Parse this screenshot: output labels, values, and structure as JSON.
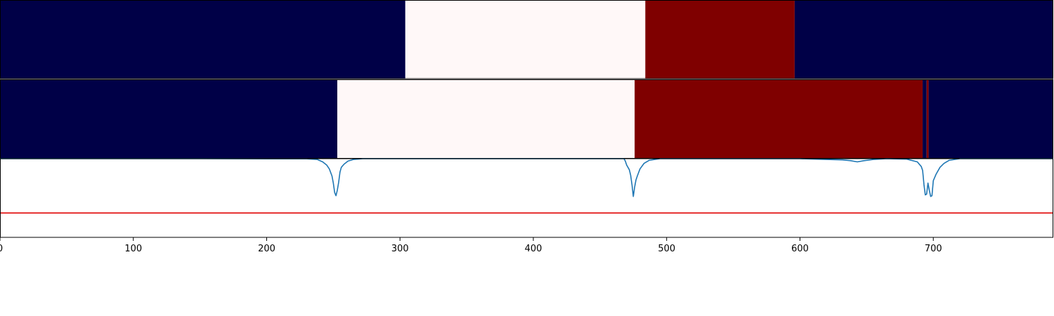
{
  "chart_data": [
    {
      "type": "heatmap",
      "panel": "ground-truth-segments",
      "xlim": [
        0,
        790
      ],
      "segments": [
        {
          "start": 0,
          "end": 304,
          "color": "#000047"
        },
        {
          "start": 304,
          "end": 484,
          "color": "#fff8f8"
        },
        {
          "start": 484,
          "end": 596,
          "color": "#7f0000"
        },
        {
          "start": 596,
          "end": 790,
          "color": "#000047"
        }
      ]
    },
    {
      "type": "heatmap",
      "panel": "predicted-segments",
      "xlim": [
        0,
        790
      ],
      "segments": [
        {
          "start": 0,
          "end": 253,
          "color": "#000047"
        },
        {
          "start": 253,
          "end": 476,
          "color": "#fff8f8"
        },
        {
          "start": 476,
          "end": 692,
          "color": "#7f0000"
        },
        {
          "start": 692,
          "end": 695,
          "color": "#000047"
        },
        {
          "start": 695,
          "end": 696.5,
          "color": "#7f0000"
        },
        {
          "start": 696.5,
          "end": 790,
          "color": "#000047"
        }
      ]
    },
    {
      "type": "line",
      "panel": "confidence",
      "xlim": [
        0,
        790
      ],
      "ylim": [
        0,
        1
      ],
      "threshold": 0.31,
      "threshold_color": "#e00000",
      "line_color": "#1f77b4",
      "x_ticks": [
        0,
        100,
        200,
        300,
        400,
        500,
        600,
        700
      ],
      "x_tick_labels": [
        "0",
        "100",
        "200",
        "300",
        "400",
        "500",
        "600",
        "700"
      ],
      "series": [
        {
          "x": [
            0,
            150,
            230,
            238,
            242,
            245,
            247,
            249,
            250,
            251,
            252,
            253,
            254,
            255,
            256,
            258,
            261,
            265,
            272,
            300,
            420,
            468,
            469,
            470,
            472,
            473,
            474,
            475,
            476,
            477,
            478,
            480,
            483,
            487,
            495,
            520,
            600,
            620,
            632,
            638,
            643,
            648,
            655,
            665,
            680,
            688,
            691,
            692,
            693,
            694,
            695,
            696,
            697,
            698,
            699,
            700,
            702,
            705,
            708,
            712,
            720,
            790
          ],
          "y": [
            1.0,
            1.0,
            0.998,
            0.99,
            0.96,
            0.92,
            0.87,
            0.78,
            0.69,
            0.57,
            0.53,
            0.6,
            0.7,
            0.83,
            0.89,
            0.93,
            0.97,
            0.99,
            1.0,
            1.0,
            1.0,
            1.0,
            0.97,
            0.92,
            0.86,
            0.79,
            0.67,
            0.52,
            0.64,
            0.73,
            0.78,
            0.87,
            0.94,
            0.98,
            1.0,
            1.0,
            1.0,
            0.99,
            0.985,
            0.975,
            0.96,
            0.975,
            0.99,
            1.0,
            0.995,
            0.96,
            0.9,
            0.85,
            0.67,
            0.54,
            0.55,
            0.69,
            0.6,
            0.52,
            0.53,
            0.72,
            0.8,
            0.89,
            0.94,
            0.98,
            1.0,
            1.0
          ]
        }
      ]
    }
  ]
}
